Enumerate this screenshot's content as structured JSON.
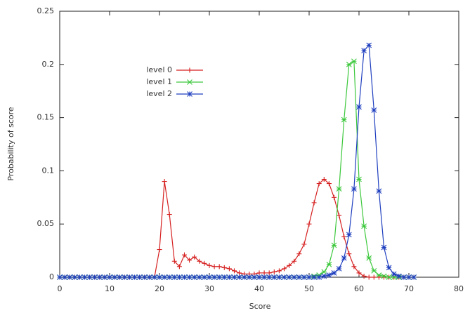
{
  "chart_data": {
    "type": "line",
    "xlabel": "Score",
    "ylabel": "Probability of score",
    "x": [
      0,
      1,
      2,
      3,
      4,
      5,
      6,
      7,
      8,
      9,
      10,
      11,
      12,
      13,
      14,
      15,
      16,
      17,
      18,
      19,
      20,
      21,
      22,
      23,
      24,
      25,
      26,
      27,
      28,
      29,
      30,
      31,
      32,
      33,
      34,
      35,
      36,
      37,
      38,
      39,
      40,
      41,
      42,
      43,
      44,
      45,
      46,
      47,
      48,
      49,
      50,
      51,
      52,
      53,
      54,
      55,
      56,
      57,
      58,
      59,
      60,
      61,
      62,
      63,
      64,
      65,
      66,
      67,
      68,
      69,
      70,
      71
    ],
    "series": [
      {
        "name": "level 0",
        "color": "#d62020",
        "marker": "plus",
        "values": [
          0,
          0,
          0,
          0,
          0,
          0,
          0,
          0,
          0,
          0,
          0,
          0,
          0,
          0,
          0,
          0,
          0,
          0,
          0,
          0,
          0.026,
          0.09,
          0.059,
          0.015,
          0.01,
          0.021,
          0.016,
          0.019,
          0.015,
          0.013,
          0.011,
          0.01,
          0.01,
          0.009,
          0.008,
          0.006,
          0.004,
          0.003,
          0.003,
          0.003,
          0.004,
          0.004,
          0.004,
          0.005,
          0.006,
          0.008,
          0.011,
          0.015,
          0.022,
          0.031,
          0.05,
          0.07,
          0.088,
          0.092,
          0.088,
          0.075,
          0.058,
          0.038,
          0.022,
          0.01,
          0.004,
          0.001,
          0,
          0,
          0,
          0,
          0,
          0,
          0,
          0,
          0,
          0
        ]
      },
      {
        "name": "level 1",
        "color": "#3cc83c",
        "marker": "cross",
        "values": [
          0,
          0,
          0,
          0,
          0,
          0,
          0,
          0,
          0,
          0,
          0,
          0,
          0,
          0,
          0,
          0,
          0,
          0,
          0,
          0,
          0,
          0,
          0,
          0,
          0,
          0,
          0,
          0,
          0,
          0,
          0,
          0,
          0,
          0,
          0,
          0,
          0,
          0,
          0,
          0,
          0,
          0,
          0,
          0,
          0,
          0,
          0,
          0,
          0,
          0,
          0,
          0.001,
          0.002,
          0.005,
          0.012,
          0.03,
          0.083,
          0.148,
          0.2,
          0.203,
          0.092,
          0.048,
          0.018,
          0.006,
          0.002,
          0.001,
          0,
          0,
          0,
          0,
          0,
          0
        ]
      },
      {
        "name": "level 2",
        "color": "#1f3fbf",
        "marker": "star",
        "values": [
          0,
          0,
          0,
          0,
          0,
          0,
          0,
          0,
          0,
          0,
          0,
          0,
          0,
          0,
          0,
          0,
          0,
          0,
          0,
          0,
          0,
          0,
          0,
          0,
          0,
          0,
          0,
          0,
          0,
          0,
          0,
          0,
          0,
          0,
          0,
          0,
          0,
          0,
          0,
          0,
          0,
          0,
          0,
          0,
          0,
          0,
          0,
          0,
          0,
          0,
          0,
          0,
          0,
          0.001,
          0.002,
          0.004,
          0.008,
          0.018,
          0.04,
          0.083,
          0.16,
          0.213,
          0.218,
          0.157,
          0.081,
          0.028,
          0.009,
          0.003,
          0.001,
          0,
          0,
          0
        ]
      }
    ],
    "xlim": [
      0,
      80
    ],
    "xticks": [
      0,
      10,
      20,
      30,
      40,
      50,
      60,
      70,
      80
    ],
    "ylim": [
      0,
      0.25
    ],
    "yticks": [
      0,
      0.05,
      0.1,
      0.15,
      0.2,
      0.25
    ],
    "legend": "upper left",
    "grid": false
  }
}
